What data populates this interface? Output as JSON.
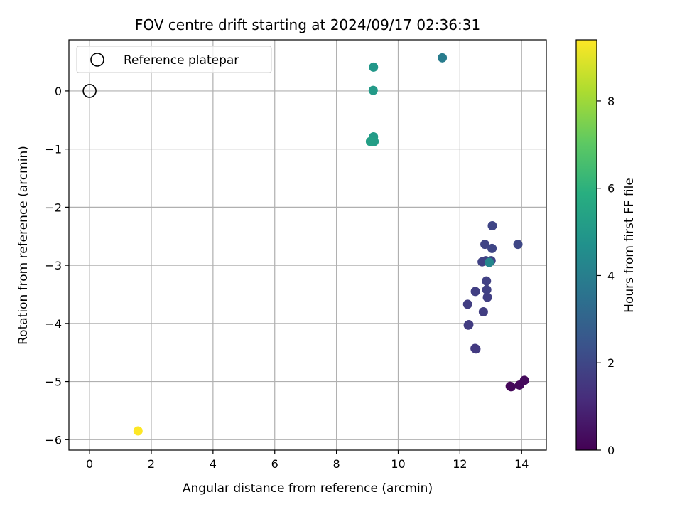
{
  "chart_data": {
    "type": "scatter",
    "title": "FOV centre drift starting at 2024/09/17 02:36:31",
    "xlabel": "Angular distance from reference (arcmin)",
    "ylabel": "Rotation from reference (arcmin)",
    "xlim": [
      -0.67,
      14.8
    ],
    "ylim": [
      -6.18,
      0.88
    ],
    "xticks": [
      0,
      2,
      4,
      6,
      8,
      10,
      12,
      14
    ],
    "xtick_labels": [
      "0",
      "2",
      "4",
      "6",
      "8",
      "10",
      "12",
      "14"
    ],
    "yticks": [
      0,
      -1,
      -2,
      -3,
      -4,
      -5,
      -6
    ],
    "ytick_labels": [
      "0",
      "−1",
      "−2",
      "−3",
      "−4",
      "−5",
      "−6"
    ],
    "grid": true,
    "colormap": "viridis",
    "colorbar": {
      "label": "Hours from first FF file",
      "range": [
        0,
        9.4
      ],
      "ticks": [
        0,
        2,
        4,
        6,
        8
      ],
      "tick_labels": [
        "0",
        "2",
        "4",
        "6",
        "8"
      ]
    },
    "legend": {
      "entries": [
        "Reference platepar"
      ],
      "position": "top-left"
    },
    "reference_point": {
      "x": 0,
      "y": 0
    },
    "points": [
      {
        "x": 13.63,
        "y": -5.08,
        "hours": 0.1
      },
      {
        "x": 13.66,
        "y": -5.09,
        "hours": 0.15
      },
      {
        "x": 13.93,
        "y": -5.06,
        "hours": 0.2
      },
      {
        "x": 14.09,
        "y": -4.98,
        "hours": 0.25
      },
      {
        "x": 12.49,
        "y": -4.43,
        "hours": 1.6
      },
      {
        "x": 12.52,
        "y": -4.44,
        "hours": 1.6
      },
      {
        "x": 12.27,
        "y": -4.03,
        "hours": 1.65
      },
      {
        "x": 12.29,
        "y": -4.02,
        "hours": 1.65
      },
      {
        "x": 12.76,
        "y": -3.8,
        "hours": 1.7
      },
      {
        "x": 12.25,
        "y": -3.67,
        "hours": 1.7
      },
      {
        "x": 12.89,
        "y": -3.55,
        "hours": 1.75
      },
      {
        "x": 12.5,
        "y": -3.45,
        "hours": 1.75
      },
      {
        "x": 12.87,
        "y": -3.42,
        "hours": 1.8
      },
      {
        "x": 12.86,
        "y": -3.27,
        "hours": 1.8
      },
      {
        "x": 12.72,
        "y": -2.94,
        "hours": 1.85
      },
      {
        "x": 12.84,
        "y": -2.92,
        "hours": 1.85
      },
      {
        "x": 13.01,
        "y": -2.92,
        "hours": 1.9
      },
      {
        "x": 12.81,
        "y": -2.64,
        "hours": 1.9
      },
      {
        "x": 13.04,
        "y": -2.71,
        "hours": 1.95
      },
      {
        "x": 13.05,
        "y": -2.32,
        "hours": 1.95
      },
      {
        "x": 13.88,
        "y": -2.64,
        "hours": 2.0
      },
      {
        "x": 12.95,
        "y": -2.95,
        "hours": 4.3
      },
      {
        "x": 11.43,
        "y": 0.57,
        "hours": 3.9
      },
      {
        "x": 9.2,
        "y": 0.41,
        "hours": 4.95
      },
      {
        "x": 9.19,
        "y": 0.01,
        "hours": 5.05
      },
      {
        "x": 9.2,
        "y": -0.79,
        "hours": 5.1
      },
      {
        "x": 9.22,
        "y": -0.87,
        "hours": 5.2
      },
      {
        "x": 9.1,
        "y": -0.87,
        "hours": 5.25
      },
      {
        "x": 1.57,
        "y": -5.85,
        "hours": 9.4
      }
    ]
  }
}
